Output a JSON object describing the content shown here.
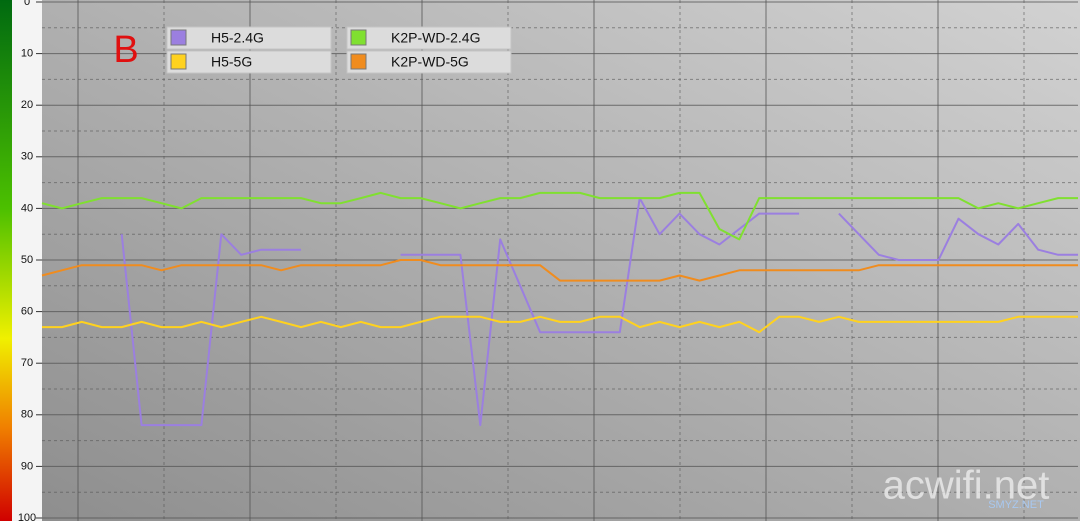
{
  "chart_data": {
    "type": "line",
    "annotation": "B",
    "watermark": "acwifi.net",
    "watermark_small": "SMYZ.NET",
    "ylim": [
      0,
      100
    ],
    "yticks": [
      0,
      10,
      20,
      30,
      40,
      50,
      60,
      70,
      80,
      90,
      100
    ],
    "inverted_y": true,
    "grid": true,
    "series": [
      {
        "name": "H5-2.4G",
        "color": "#9b7fe0",
        "values": [
          null,
          null,
          null,
          null,
          45,
          82,
          82,
          82,
          82,
          45,
          49,
          48,
          48,
          48,
          null,
          null,
          null,
          null,
          49,
          49,
          49,
          49,
          82,
          46,
          55,
          64,
          64,
          64,
          64,
          64,
          38,
          45,
          41,
          45,
          47,
          44,
          41,
          41,
          41,
          null,
          41,
          45,
          49,
          50,
          50,
          50,
          42,
          45,
          47,
          43,
          48,
          49,
          49
        ]
      },
      {
        "name": "H5-5G",
        "color": "#ffd21f",
        "values": [
          63,
          63,
          62,
          63,
          63,
          62,
          63,
          63,
          62,
          63,
          62,
          61,
          62,
          63,
          62,
          63,
          62,
          63,
          63,
          62,
          61,
          61,
          61,
          62,
          62,
          61,
          62,
          62,
          61,
          61,
          63,
          62,
          63,
          62,
          63,
          62,
          64,
          61,
          61,
          62,
          61,
          62,
          62,
          62,
          62,
          62,
          62,
          62,
          62,
          61,
          61,
          61,
          61
        ]
      },
      {
        "name": "K2P-WD-2.4G",
        "color": "#80e030",
        "values": [
          39,
          40,
          39,
          38,
          38,
          38,
          39,
          40,
          38,
          38,
          38,
          38,
          38,
          38,
          39,
          39,
          38,
          37,
          38,
          38,
          39,
          40,
          39,
          38,
          38,
          37,
          37,
          37,
          38,
          38,
          38,
          38,
          37,
          37,
          44,
          46,
          38,
          38,
          38,
          38,
          38,
          38,
          38,
          38,
          38,
          38,
          38,
          40,
          39,
          40,
          39,
          38,
          38
        ]
      },
      {
        "name": "K2P-WD-5G",
        "color": "#f08c1e",
        "values": [
          53,
          52,
          51,
          51,
          51,
          51,
          52,
          51,
          51,
          51,
          51,
          51,
          52,
          51,
          51,
          51,
          51,
          51,
          50,
          50,
          51,
          51,
          51,
          51,
          51,
          51,
          54,
          54,
          54,
          54,
          54,
          54,
          53,
          54,
          53,
          52,
          52,
          52,
          52,
          52,
          52,
          52,
          51,
          51,
          51,
          51,
          51,
          51,
          51,
          51,
          51,
          51,
          51
        ]
      }
    ]
  }
}
